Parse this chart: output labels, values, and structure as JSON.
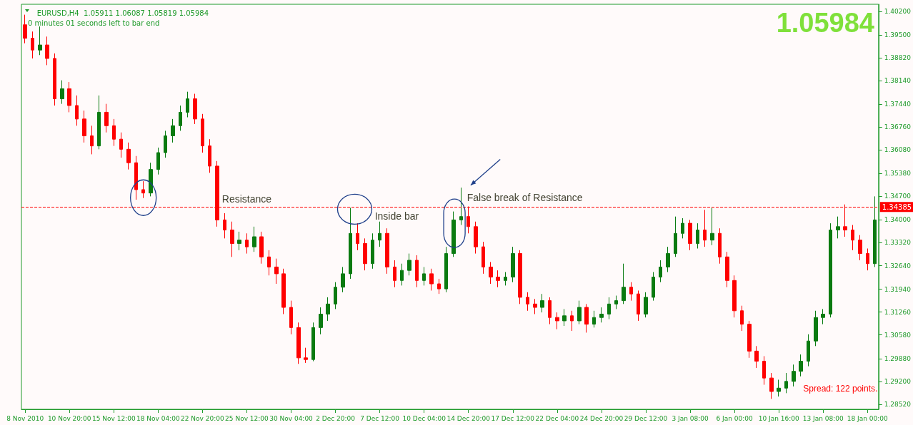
{
  "chart_data": {
    "type": "candlestick",
    "title": "EURUSD,H4  1.05911 1.06087 1.05819 1.05984",
    "subtitle": "0 minutes 01 seconds left to bar end",
    "annotations": [
      "1.05984",
      "Resistance",
      "Inside bar",
      "False break of Resistance",
      "Spread: 122 points."
    ],
    "categories": [
      "8 Nov 2010",
      null,
      null,
      null,
      null,
      null,
      "10 Nov 20:00",
      null,
      null,
      null,
      null,
      null,
      "15 Nov 12:00",
      null,
      null,
      null,
      null,
      null,
      "18 Nov 04:00",
      null,
      null,
      null,
      null,
      null,
      "22 Nov 20:00",
      null,
      null,
      null,
      null,
      null,
      "25 Nov 12:00",
      null,
      null,
      null,
      null,
      null,
      "30 Nov 04:00",
      null,
      null,
      null,
      null,
      null,
      "2 Dec 20:00",
      null,
      null,
      null,
      null,
      null,
      "7 Dec 12:00",
      null,
      null,
      null,
      null,
      null,
      "10 Dec 04:00",
      null,
      null,
      null,
      null,
      null,
      "14 Dec 20:00",
      null,
      null,
      null,
      null,
      null,
      "17 Dec 12:00",
      null,
      null,
      null,
      null,
      null,
      "22 Dec 04:00",
      null,
      null,
      null,
      null,
      null,
      "24 Dec 20:00",
      null,
      null,
      null,
      null,
      null,
      "29 Dec 12:00",
      null,
      null,
      null,
      null,
      null,
      "3 Jan 08:00",
      null,
      null,
      null,
      null,
      null,
      "6 Jan 00:00",
      null,
      null,
      null,
      null,
      null,
      "10 Jan 16:00",
      null,
      null,
      null,
      null,
      null,
      "13 Jan 08:00",
      null,
      null,
      null,
      null,
      null,
      "18 Jan 00:00",
      null
    ],
    "ohlc": [
      [
        1.398,
        1.401,
        1.3925,
        1.394
      ],
      [
        1.394,
        1.396,
        1.388,
        1.3905
      ],
      [
        1.3905,
        1.3975,
        1.389,
        1.392
      ],
      [
        1.392,
        1.3945,
        1.386,
        1.388
      ],
      [
        1.388,
        1.3895,
        1.374,
        1.376
      ],
      [
        1.376,
        1.3815,
        1.3745,
        1.379
      ],
      [
        1.379,
        1.381,
        1.372,
        1.374
      ],
      [
        1.374,
        1.377,
        1.368,
        1.37
      ],
      [
        1.37,
        1.3725,
        1.363,
        1.365
      ],
      [
        1.365,
        1.368,
        1.3595,
        1.362
      ],
      [
        1.362,
        1.377,
        1.361,
        1.372
      ],
      [
        1.372,
        1.3745,
        1.366,
        1.368
      ],
      [
        1.368,
        1.37,
        1.362,
        1.364
      ],
      [
        1.364,
        1.366,
        1.3585,
        1.361
      ],
      [
        1.361,
        1.363,
        1.355,
        1.357
      ],
      [
        1.357,
        1.359,
        1.346,
        1.349
      ],
      [
        1.349,
        1.3515,
        1.3465,
        1.348
      ],
      [
        1.348,
        1.357,
        1.347,
        1.355
      ],
      [
        1.355,
        1.3615,
        1.3535,
        1.36
      ],
      [
        1.36,
        1.3665,
        1.3585,
        1.365
      ],
      [
        1.365,
        1.37,
        1.363,
        1.368
      ],
      [
        1.368,
        1.374,
        1.3665,
        1.372
      ],
      [
        1.372,
        1.3781,
        1.3705,
        1.376
      ],
      [
        1.376,
        1.3775,
        1.3685,
        1.37
      ],
      [
        1.37,
        1.3715,
        1.36,
        1.362
      ],
      [
        1.362,
        1.364,
        1.354,
        1.356
      ],
      [
        1.356,
        1.3575,
        1.338,
        1.34
      ],
      [
        1.34,
        1.342,
        1.3345,
        1.337
      ],
      [
        1.337,
        1.3395,
        1.329,
        1.333
      ],
      [
        1.333,
        1.3365,
        1.331,
        1.334
      ],
      [
        1.334,
        1.336,
        1.33,
        1.332
      ],
      [
        1.332,
        1.338,
        1.3305,
        1.335
      ],
      [
        1.335,
        1.3365,
        1.327,
        1.329
      ],
      [
        1.329,
        1.331,
        1.3235,
        1.326
      ],
      [
        1.326,
        1.3285,
        1.321,
        1.324
      ],
      [
        1.324,
        1.3255,
        1.312,
        1.314
      ],
      [
        1.314,
        1.316,
        1.306,
        1.308
      ],
      [
        1.308,
        1.3095,
        1.2972,
        1.299
      ],
      [
        1.299,
        1.302,
        1.2975,
        1.2985
      ],
      [
        1.2985,
        1.3095,
        1.298,
        1.308
      ],
      [
        1.308,
        1.314,
        1.306,
        1.312
      ],
      [
        1.312,
        1.317,
        1.31,
        1.315
      ],
      [
        1.315,
        1.3215,
        1.3135,
        1.32
      ],
      [
        1.32,
        1.326,
        1.3185,
        1.324
      ],
      [
        1.324,
        1.3436,
        1.3225,
        1.336
      ],
      [
        1.336,
        1.339,
        1.331,
        1.333
      ],
      [
        1.333,
        1.3345,
        1.325,
        1.327
      ],
      [
        1.327,
        1.336,
        1.3255,
        1.334
      ],
      [
        1.334,
        1.3395,
        1.332,
        1.336
      ],
      [
        1.336,
        1.3375,
        1.324,
        1.326
      ],
      [
        1.326,
        1.328,
        1.32,
        1.322
      ],
      [
        1.322,
        1.327,
        1.3205,
        1.325
      ],
      [
        1.325,
        1.33,
        1.3235,
        1.328
      ],
      [
        1.328,
        1.3295,
        1.32,
        1.322
      ],
      [
        1.322,
        1.326,
        1.3205,
        1.324
      ],
      [
        1.324,
        1.3255,
        1.319,
        1.321
      ],
      [
        1.321,
        1.3225,
        1.318,
        1.3195
      ],
      [
        1.3195,
        1.332,
        1.3185,
        1.33
      ],
      [
        1.33,
        1.3425,
        1.329,
        1.34
      ],
      [
        1.34,
        1.3496,
        1.3385,
        1.341
      ],
      [
        1.341,
        1.344,
        1.336,
        1.338
      ],
      [
        1.338,
        1.3395,
        1.33,
        1.332
      ],
      [
        1.332,
        1.3335,
        1.324,
        1.326
      ],
      [
        1.326,
        1.3275,
        1.321,
        1.323
      ],
      [
        1.323,
        1.325,
        1.32,
        1.322
      ],
      [
        1.322,
        1.3245,
        1.3205,
        1.323
      ],
      [
        1.323,
        1.332,
        1.3215,
        1.33
      ],
      [
        1.33,
        1.331,
        1.315,
        1.317
      ],
      [
        1.317,
        1.3185,
        1.313,
        1.315
      ],
      [
        1.315,
        1.3165,
        1.312,
        1.314
      ],
      [
        1.314,
        1.318,
        1.3125,
        1.316
      ],
      [
        1.316,
        1.317,
        1.309,
        1.311
      ],
      [
        1.311,
        1.3125,
        1.3075,
        1.31
      ],
      [
        1.31,
        1.3135,
        1.3085,
        1.3115
      ],
      [
        1.3115,
        1.313,
        1.307,
        1.31
      ],
      [
        1.31,
        1.316,
        1.309,
        1.314
      ],
      [
        1.314,
        1.315,
        1.3065,
        1.309
      ],
      [
        1.309,
        1.313,
        1.308,
        1.311
      ],
      [
        1.311,
        1.314,
        1.3095,
        1.312
      ],
      [
        1.312,
        1.317,
        1.3105,
        1.315
      ],
      [
        1.315,
        1.3175,
        1.3135,
        1.316
      ],
      [
        1.316,
        1.327,
        1.315,
        1.32
      ],
      [
        1.32,
        1.3215,
        1.316,
        1.318
      ],
      [
        1.318,
        1.319,
        1.31,
        1.312
      ],
      [
        1.312,
        1.3185,
        1.311,
        1.317
      ],
      [
        1.317,
        1.3245,
        1.316,
        1.323
      ],
      [
        1.323,
        1.328,
        1.3215,
        1.326
      ],
      [
        1.326,
        1.332,
        1.3245,
        1.33
      ],
      [
        1.33,
        1.341,
        1.329,
        1.336
      ],
      [
        1.336,
        1.3405,
        1.3345,
        1.339
      ],
      [
        1.339,
        1.34,
        1.331,
        1.333
      ],
      [
        1.333,
        1.339,
        1.3315,
        1.337
      ],
      [
        1.337,
        1.343,
        1.332,
        1.334
      ],
      [
        1.334,
        1.3436,
        1.3325,
        1.336
      ],
      [
        1.336,
        1.3375,
        1.327,
        1.329
      ],
      [
        1.329,
        1.3305,
        1.32,
        1.322
      ],
      [
        1.322,
        1.3235,
        1.311,
        1.313
      ],
      [
        1.313,
        1.3145,
        1.307,
        1.309
      ],
      [
        1.309,
        1.31,
        1.299,
        1.301
      ],
      [
        1.301,
        1.3025,
        1.296,
        1.298
      ],
      [
        1.298,
        1.2995,
        1.291,
        1.293
      ],
      [
        1.293,
        1.2945,
        1.2868,
        1.289
      ],
      [
        1.289,
        1.2925,
        1.2875,
        1.29
      ],
      [
        1.29,
        1.2945,
        1.2885,
        1.292
      ],
      [
        1.292,
        1.297,
        1.2905,
        1.295
      ],
      [
        1.295,
        1.3,
        1.2935,
        1.298
      ],
      [
        1.298,
        1.306,
        1.2965,
        1.304
      ],
      [
        1.304,
        1.313,
        1.3025,
        1.311
      ],
      [
        1.311,
        1.3135,
        1.309,
        1.312
      ],
      [
        1.312,
        1.339,
        1.311,
        1.337
      ],
      [
        1.337,
        1.341,
        1.3345,
        1.338
      ],
      [
        1.338,
        1.3446,
        1.335,
        1.337
      ],
      [
        1.337,
        1.3385,
        1.331,
        1.334
      ],
      [
        1.334,
        1.3355,
        1.328,
        1.33
      ],
      [
        1.33,
        1.3315,
        1.325,
        1.327
      ],
      [
        1.327,
        1.347,
        1.326,
        1.34
      ]
    ],
    "ylim": [
      1.2837,
      1.4041
    ],
    "yticks": [
      {
        "value": 1.402,
        "label": "1.40200"
      },
      {
        "value": 1.395,
        "label": "1.39500"
      },
      {
        "value": 1.3882,
        "label": "1.38820"
      },
      {
        "value": 1.3814,
        "label": "1.38140"
      },
      {
        "value": 1.3744,
        "label": "1.37440"
      },
      {
        "value": 1.3676,
        "label": "1.36760"
      },
      {
        "value": 1.3608,
        "label": "1.36080"
      },
      {
        "value": 1.3538,
        "label": "1.35380"
      },
      {
        "value": 1.347,
        "label": "1.34700"
      },
      {
        "value": 1.34,
        "label": "1.34000"
      },
      {
        "value": 1.3332,
        "label": "1.33320"
      },
      {
        "value": 1.3264,
        "label": "1.32640"
      },
      {
        "value": 1.3194,
        "label": "1.31940"
      },
      {
        "value": 1.3126,
        "label": "1.31260"
      },
      {
        "value": 1.3058,
        "label": "1.30580"
      },
      {
        "value": 1.2988,
        "label": "1.29880"
      },
      {
        "value": 1.292,
        "label": "1.29200"
      },
      {
        "value": 1.2852,
        "label": "1.28520"
      }
    ],
    "ref_lines": [
      {
        "axis": "y",
        "value": 1.34385,
        "label": "1.34385",
        "color": "#ff0000",
        "line_style": "dashed"
      }
    ],
    "grid": false
  }
}
